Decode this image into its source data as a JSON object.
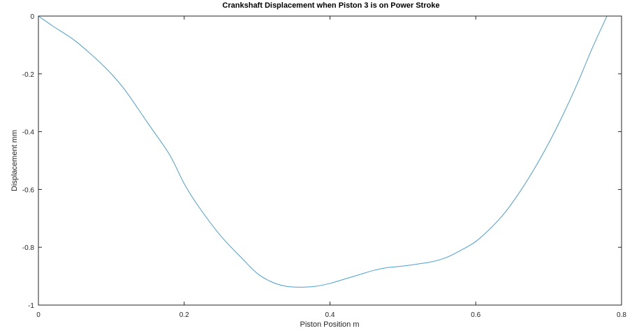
{
  "colors": {
    "line": "#4A9FD6",
    "axes": "#262626",
    "background": "#ffffff"
  },
  "chart_data": {
    "type": "line",
    "title": "Crankshaft Displacement when Piston 3 is on Power Stroke",
    "xlabel": "Piston Position m",
    "ylabel": "Displacement mm",
    "xlim": [
      0,
      0.8
    ],
    "ylim": [
      -1,
      0
    ],
    "grid": false,
    "box": true,
    "xticks": [
      0,
      0.2,
      0.4,
      0.6,
      0.8
    ],
    "xtick_labels": [
      "0",
      "0.2",
      "0.4",
      "0.6",
      "0.8"
    ],
    "yticks": [
      0,
      -0.2,
      -0.4,
      -0.6,
      -0.8,
      -1
    ],
    "ytick_labels": [
      "0",
      "-0.2",
      "-0.4",
      "-0.6",
      "-0.8",
      "-1"
    ],
    "series": [
      {
        "x": [
          0,
          0.02,
          0.05,
          0.08,
          0.1,
          0.12,
          0.15,
          0.18,
          0.2,
          0.22,
          0.25,
          0.28,
          0.3,
          0.32,
          0.34,
          0.36,
          0.38,
          0.4,
          0.42,
          0.44,
          0.46,
          0.48,
          0.5,
          0.52,
          0.54,
          0.56,
          0.58,
          0.6,
          0.62,
          0.64,
          0.66,
          0.68,
          0.7,
          0.72,
          0.74,
          0.76,
          0.78
        ],
        "y": [
          0,
          -0.035,
          -0.085,
          -0.15,
          -0.2,
          -0.26,
          -0.37,
          -0.48,
          -0.58,
          -0.66,
          -0.76,
          -0.84,
          -0.89,
          -0.92,
          -0.935,
          -0.938,
          -0.935,
          -0.925,
          -0.91,
          -0.895,
          -0.88,
          -0.87,
          -0.865,
          -0.858,
          -0.85,
          -0.835,
          -0.81,
          -0.78,
          -0.735,
          -0.68,
          -0.61,
          -0.53,
          -0.44,
          -0.34,
          -0.23,
          -0.11,
          0
        ]
      }
    ]
  }
}
